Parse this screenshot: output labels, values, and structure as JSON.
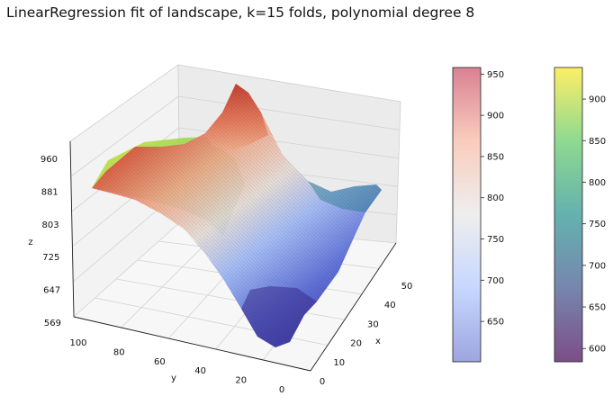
{
  "chart_data": {
    "type": "surface3d",
    "title": "LinearRegression fit of landscape, k=15 folds, polynomial degree 8",
    "xlabel": "x",
    "ylabel": "y",
    "zlabel": "z",
    "xlim": [
      0,
      50
    ],
    "ylim": [
      0,
      100
    ],
    "zlim": [
      569,
      960
    ],
    "xticks": [
      "0",
      "10",
      "20",
      "30",
      "40",
      "50"
    ],
    "yticks": [
      "0",
      "20",
      "40",
      "60",
      "80",
      "100"
    ],
    "zticks": [
      "569",
      "647",
      "725",
      "803",
      "881",
      "960"
    ],
    "grid": true,
    "series": [
      {
        "colormap": "coolwarm",
        "alpha": 0.5
      },
      {
        "colormap": "viridis",
        "alpha": 0.7
      }
    ],
    "colorbars": [
      {
        "colormap": "coolwarm",
        "range": [
          601,
          958
        ],
        "ticks": [
          "650",
          "700",
          "750",
          "800",
          "850",
          "900",
          "950"
        ]
      },
      {
        "colormap": "viridis",
        "range": [
          584,
          938
        ],
        "ticks": [
          "600",
          "650",
          "700",
          "750",
          "800",
          "850",
          "900"
        ]
      }
    ]
  }
}
